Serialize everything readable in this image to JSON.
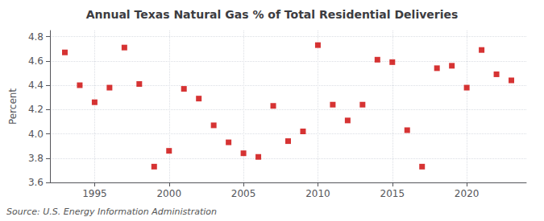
{
  "chart_data": {
    "type": "scatter",
    "title": "Annual Texas Natural Gas % of Total Residential Deliveries",
    "ylabel": "Percent",
    "annotations": [
      "Source: U.S. Energy Information Administration"
    ],
    "x": [
      1993,
      1994,
      1995,
      1996,
      1997,
      1998,
      1999,
      2000,
      2001,
      2002,
      2003,
      2004,
      2005,
      2006,
      2007,
      2008,
      2009,
      2010,
      2011,
      2012,
      2013,
      2014,
      2015,
      2016,
      2017,
      2018,
      2019,
      2020,
      2021,
      2022,
      2023
    ],
    "values": [
      4.67,
      4.4,
      4.26,
      4.38,
      4.71,
      4.41,
      3.73,
      3.86,
      4.37,
      4.29,
      4.07,
      3.93,
      3.84,
      3.81,
      4.23,
      3.94,
      4.02,
      4.73,
      4.24,
      4.11,
      4.24,
      4.61,
      4.59,
      4.03,
      3.73,
      4.54,
      4.56,
      4.38,
      4.69,
      4.49,
      4.44
    ],
    "color": "#cc0000",
    "marker": "square",
    "xlim": [
      1992,
      2024
    ],
    "xticks": [
      1995,
      2000,
      2005,
      2010,
      2015,
      2020
    ],
    "ylim": [
      3.6,
      4.85
    ],
    "yticks": [
      3.6,
      3.8,
      {
        "value": 4.0,
        "label": "4.0"
      },
      4.2,
      4.4,
      4.6,
      4.8
    ],
    "grid": true
  }
}
